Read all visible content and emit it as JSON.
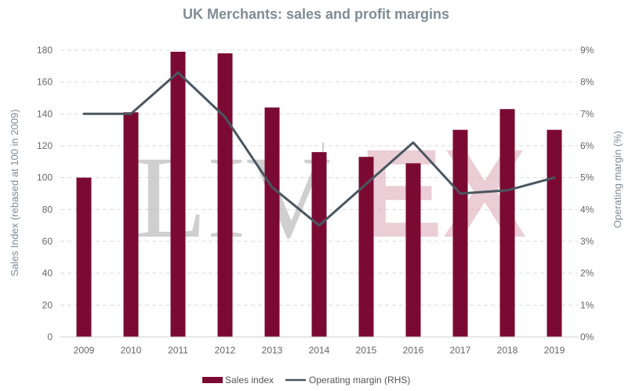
{
  "chart_data": {
    "type": "bar",
    "title": "UK Merchants: sales and profit margins",
    "ylabel": "Sales Index (rebased at 100 in 2009)",
    "y2label": "Operating margin (%)",
    "categories": [
      "2009",
      "2010",
      "2011",
      "2012",
      "2013",
      "2014",
      "2015",
      "2016",
      "2017",
      "2018",
      "2019"
    ],
    "ylim": [
      0,
      180
    ],
    "y_ticks": [
      "0",
      "20",
      "40",
      "60",
      "80",
      "100",
      "120",
      "140",
      "160",
      "180"
    ],
    "y2lim": [
      0,
      9
    ],
    "y2_ticks": [
      "0%",
      "1%",
      "2%",
      "3%",
      "4%",
      "5%",
      "6%",
      "7%",
      "8%",
      "9%"
    ],
    "grid": "horizontal dashed",
    "legend_position": "bottom",
    "series": [
      {
        "name": "Sales index",
        "type": "bar",
        "axis": "left",
        "color": "#7b0a33",
        "values": [
          100,
          141,
          179,
          178,
          144,
          116,
          113,
          109,
          130,
          143,
          130
        ]
      },
      {
        "name": "Operating margin (RHS)",
        "type": "line",
        "axis": "right",
        "unit": "%",
        "color": "#4a5660",
        "values": [
          7.0,
          7.0,
          8.3,
          6.9,
          4.7,
          3.5,
          4.8,
          6.1,
          4.5,
          4.6,
          5.0
        ]
      }
    ]
  },
  "watermark": {
    "left_text": "LIV",
    "right_text": "EX",
    "left_color": "#bdbdbd",
    "right_color": "#d9a6b4"
  }
}
